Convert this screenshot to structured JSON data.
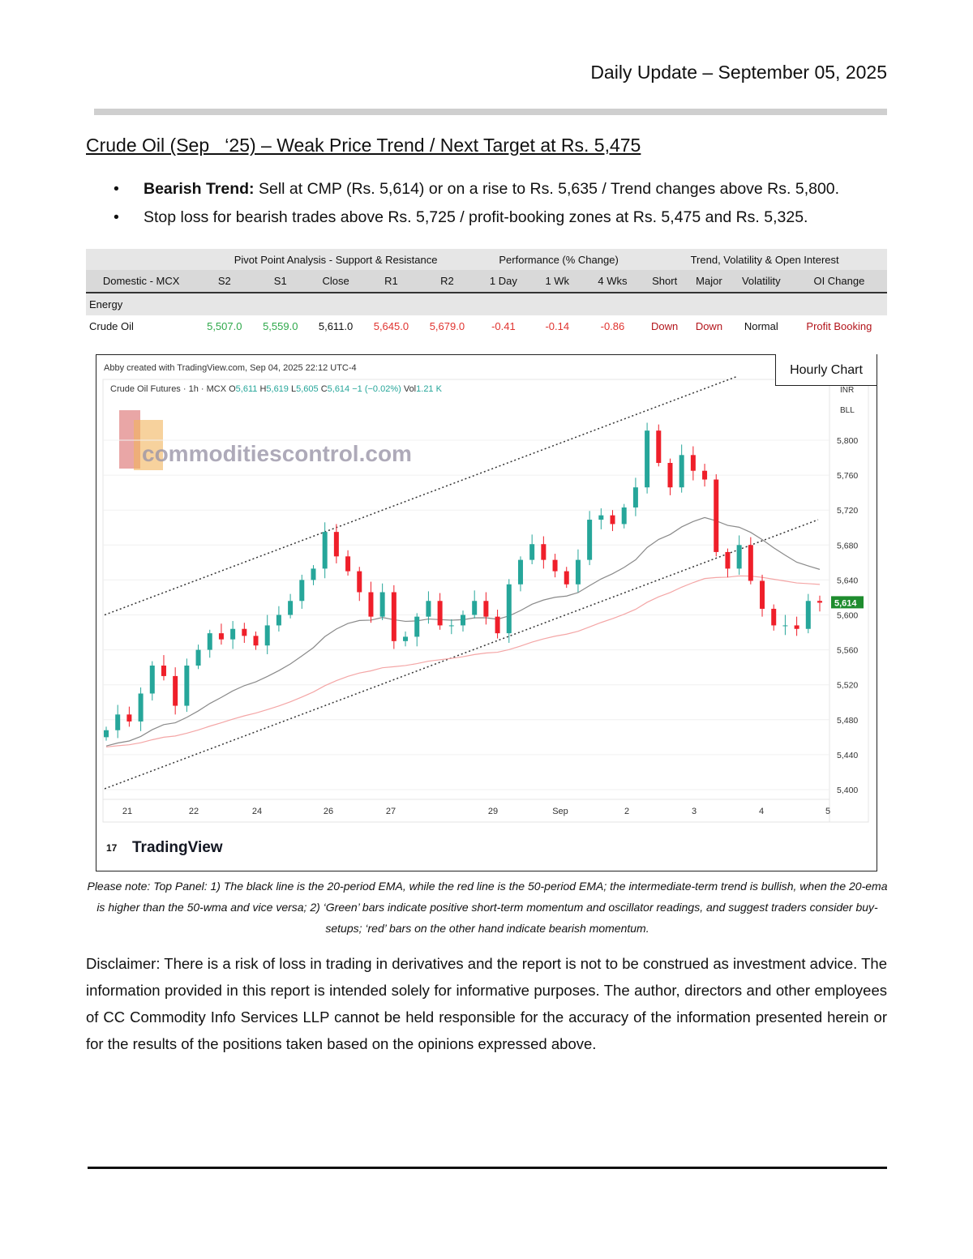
{
  "header": "Daily Update – September 05, 2025",
  "title": "Crude Oil (Sep   ‘25) – Weak Price Trend / Next Target at Rs. 5,475",
  "bullets": [
    {
      "bold": "Bearish Trend:",
      "text": " Sell at CMP (Rs. 5,614) or on a rise to Rs. 5,635 / Trend changes above Rs. 5,800."
    },
    {
      "bold": "",
      "text": "Stop loss for bearish trades above Rs. 5,725 / profit-booking zones at Rs. 5,475 and Rs. 5,325."
    }
  ],
  "table": {
    "groups": [
      "Pivot Point Analysis - Support & Resistance",
      "Performance (% Change)",
      "Trend, Volatility & Open Interest"
    ],
    "columns": [
      "Domestic - MCX",
      "S2",
      "S1",
      "Close",
      "R1",
      "R2",
      "1 Day",
      "1 Wk",
      "4 Wks",
      "Short",
      "Major",
      "Volatility",
      "OI Change"
    ],
    "section": "Energy",
    "row": [
      "Crude Oil",
      "5,507.0",
      "5,559.0",
      "5,611.0",
      "5,645.0",
      "5,679.0",
      "-0.41",
      "-0.14",
      "-0.86",
      "Down",
      "Down",
      "Normal",
      "Profit Booking"
    ]
  },
  "chart_label": "Hourly Chart",
  "chart_data": {
    "type": "candlestick",
    "created": "Abby created with TradingView.com, Sep 04, 2025 22:12 UTC-4",
    "symbol": "Crude Oil Futures · 1h · MCX",
    "ohlc_text": {
      "o": "5,611",
      "h": "5,619",
      "l": "5,605",
      "c": "5,614",
      "chg": "−1 (−0.02%)",
      "vol": "1.21 K"
    },
    "currency": "INR",
    "unit": "BLL",
    "watermark": "commoditiescontrol.com",
    "brand": "TradingView",
    "ylim": [
      5380,
      5850
    ],
    "yticks": [
      "5,400",
      "5,440",
      "5,480",
      "5,520",
      "5,560",
      "5,600",
      "5,640",
      "5,680",
      "5,720",
      "5,760",
      "5,800"
    ],
    "xticks": [
      "21",
      "22",
      "24",
      "26",
      "27",
      "29",
      "Sep",
      "2",
      "3",
      "4",
      "5"
    ],
    "last_price": "5,614",
    "closes": [
      5468,
      5486,
      5478,
      5510,
      5542,
      5530,
      5496,
      5542,
      5560,
      5579,
      5572,
      5584,
      5576,
      5565,
      5588,
      5600,
      5616,
      5640,
      5653,
      5695,
      5667,
      5650,
      5626,
      5598,
      5626,
      5570,
      5575,
      5598,
      5616,
      5588,
      5588,
      5600,
      5616,
      5598,
      5579,
      5635,
      5663,
      5681,
      5663,
      5650,
      5635,
      5663,
      5709,
      5714,
      5704,
      5723,
      5746,
      5811,
      5774,
      5746,
      5783,
      5765,
      5755,
      5672,
      5653,
      5680,
      5639,
      5607,
      5588,
      5588,
      5584,
      5616,
      5614
    ],
    "ema_periods": [
      20,
      50
    ],
    "colors": {
      "up": "#26a69a",
      "down": "#ef1f2a",
      "ema20": "#8a8a8a",
      "ema50": "#f4a6a6",
      "last": "#1e8c2e"
    },
    "channel": {
      "upper": [
        5600,
        5873
      ],
      "lower": [
        5401,
        5709
      ]
    }
  },
  "note": "Please note: Top Panel: 1) The black line is the 20-period EMA, while the red line is the 50-period EMA; the intermediate-term trend is bullish, when the 20-ema is higher than the 50-wma and vice versa; 2)  ‘Green’  bars indicate positive short-term momentum and oscillator readings, and suggest traders consider buy-setups;  ‘red’  bars on the other hand indicate bearish momentum.",
  "disclaimer": "Disclaimer: There is a risk of loss in trading in derivatives and the report is not to be construed as investment advice. The information provided in this report is intended solely for informative purposes. The author, directors and other employees of CC Commodity Info Services LLP cannot be held responsible for the accuracy of the information presented herein or for the results of the positions taken based on the opinions expressed above."
}
